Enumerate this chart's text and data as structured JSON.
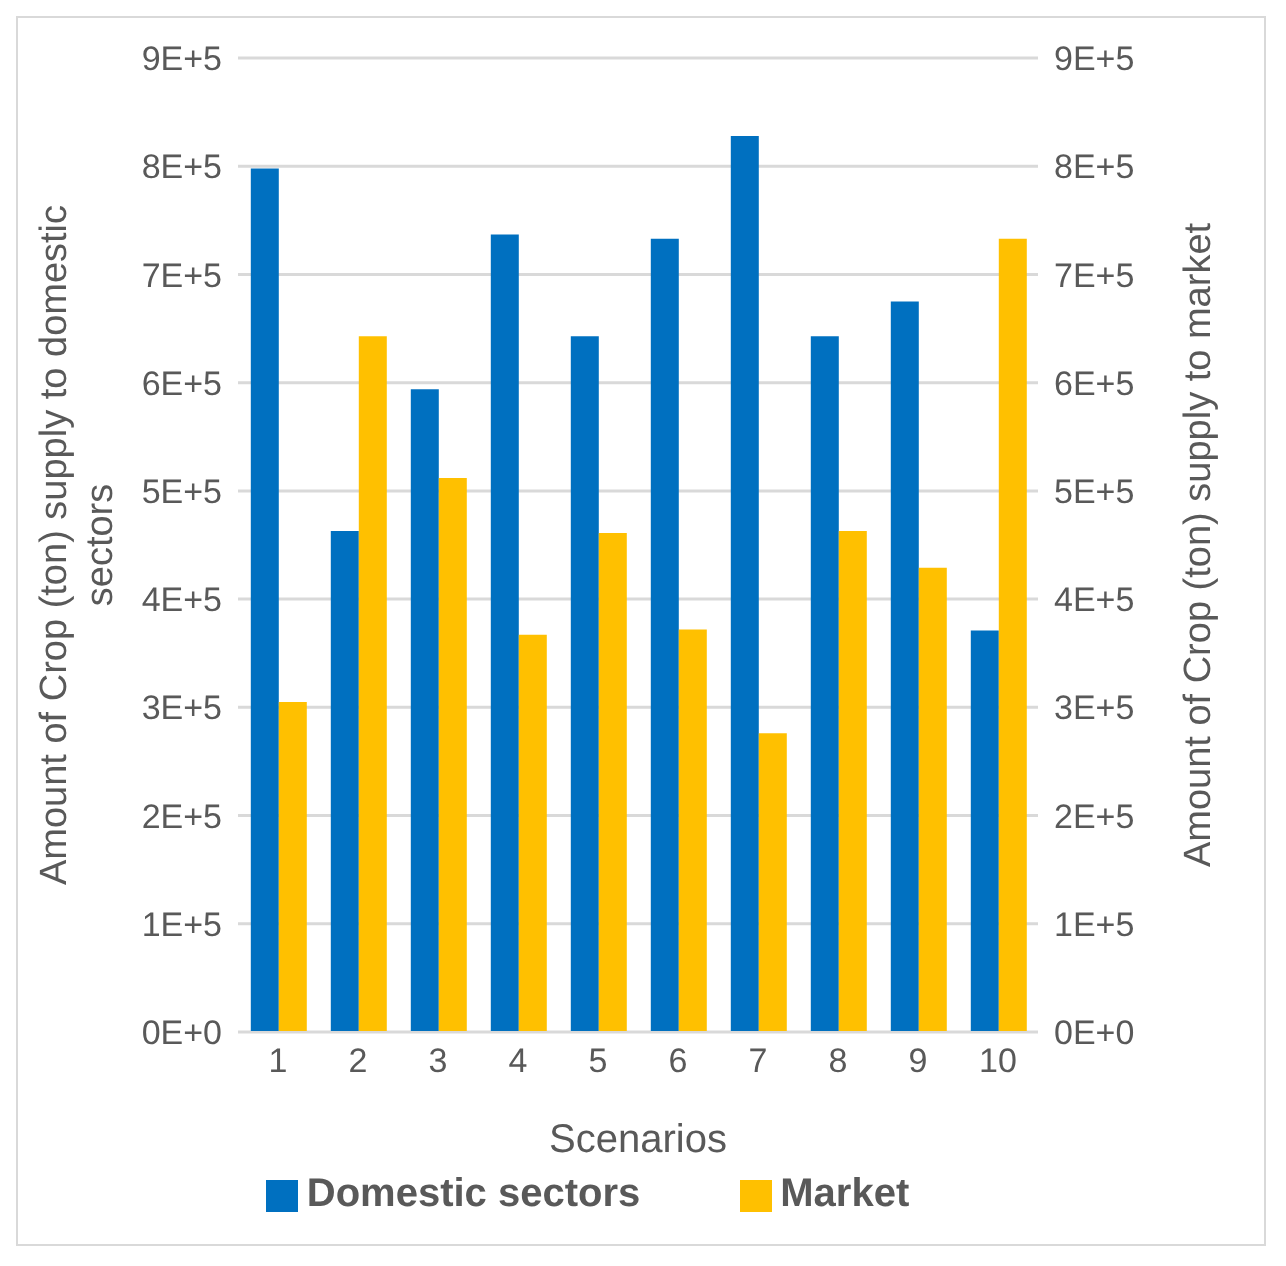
{
  "chart_data": {
    "type": "bar",
    "xlabel": "Scenarios",
    "ylabel": "Amount of Crop (ton)  supply to domestic sectors",
    "y2label": "Amount of Crop (ton) supply to market",
    "categories": [
      "1",
      "2",
      "3",
      "4",
      "5",
      "6",
      "7",
      "8",
      "9",
      "10"
    ],
    "series": [
      {
        "name": "Domestic sectors",
        "color": "#0070c0",
        "values": [
          798000,
          463000,
          594000,
          737000,
          643000,
          733000,
          828000,
          643000,
          675000,
          371000
        ]
      },
      {
        "name": "Market",
        "color": "#ffc000",
        "axis": "y2",
        "values": [
          305000,
          643000,
          512000,
          367000,
          461000,
          372000,
          276000,
          463000,
          429000,
          733000
        ]
      }
    ],
    "ylim": [
      0,
      900000
    ],
    "yticks": [
      {
        "value": 0,
        "label": "0E+0"
      },
      {
        "value": 100000,
        "label": "1E+5"
      },
      {
        "value": 200000,
        "label": "2E+5"
      },
      {
        "value": 300000,
        "label": "3E+5"
      },
      {
        "value": 400000,
        "label": "4E+5"
      },
      {
        "value": 500000,
        "label": "5E+5"
      },
      {
        "value": 600000,
        "label": "6E+5"
      },
      {
        "value": 700000,
        "label": "7E+5"
      },
      {
        "value": 800000,
        "label": "8E+5"
      },
      {
        "value": 900000,
        "label": "9E+5"
      }
    ],
    "y2lim": [
      0,
      900000
    ],
    "y2ticks": [
      {
        "value": 0,
        "label": "0E+0"
      },
      {
        "value": 100000,
        "label": "1E+5"
      },
      {
        "value": 200000,
        "label": "2E+5"
      },
      {
        "value": 300000,
        "label": "3E+5"
      },
      {
        "value": 400000,
        "label": "4E+5"
      },
      {
        "value": 500000,
        "label": "5E+5"
      },
      {
        "value": 600000,
        "label": "6E+5"
      },
      {
        "value": 700000,
        "label": "7E+5"
      },
      {
        "value": 800000,
        "label": "8E+5"
      },
      {
        "value": 900000,
        "label": "9E+5"
      }
    ],
    "grid": "y",
    "legend": "bottom"
  }
}
